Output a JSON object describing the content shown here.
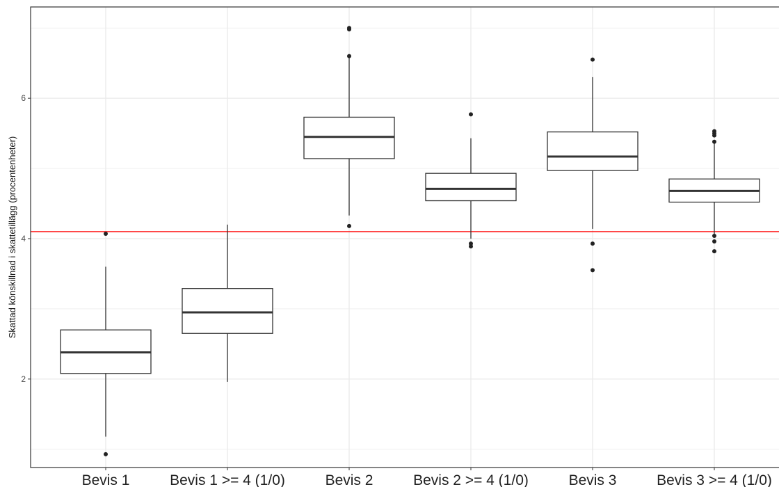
{
  "chart_data": {
    "type": "boxplot",
    "title": "",
    "xlabel": "",
    "ylabel": "Skattad könskillnad i skattetillägg (procentenheter)",
    "ylim": [
      0.74,
      7.3
    ],
    "yticks": [
      2,
      4,
      6
    ],
    "ytick_labels": [
      "2",
      "4",
      "6"
    ],
    "grid": true,
    "categories": [
      "Bevis 1",
      "Bevis 1 >= 4 (1/0)",
      "Bevis 2",
      "Bevis 2 >= 4 (1/0)",
      "Bevis 3",
      "Bevis 3 >= 4 (1/0)"
    ],
    "boxes": [
      {
        "whisker_low": 1.18,
        "q1": 2.08,
        "median": 2.38,
        "q3": 2.7,
        "whisker_high": 3.6,
        "outliers": [
          0.93,
          4.07
        ]
      },
      {
        "whisker_low": 1.96,
        "q1": 2.65,
        "median": 2.95,
        "q3": 3.29,
        "whisker_high": 4.2,
        "outliers": []
      },
      {
        "whisker_low": 4.33,
        "q1": 5.14,
        "median": 5.45,
        "q3": 5.73,
        "whisker_high": 6.58,
        "outliers": [
          4.18,
          6.6,
          6.98,
          7.0
        ]
      },
      {
        "whisker_low": 4.0,
        "q1": 4.54,
        "median": 4.71,
        "q3": 4.93,
        "whisker_high": 5.43,
        "outliers": [
          3.89,
          3.93,
          5.77
        ]
      },
      {
        "whisker_low": 4.14,
        "q1": 4.97,
        "median": 5.17,
        "q3": 5.52,
        "whisker_high": 6.3,
        "outliers": [
          3.55,
          3.93,
          6.55
        ]
      },
      {
        "whisker_low": 4.05,
        "q1": 4.52,
        "median": 4.68,
        "q3": 4.85,
        "whisker_high": 5.36,
        "outliers": [
          3.82,
          3.96,
          4.04,
          5.38,
          5.47,
          5.5,
          5.53
        ]
      }
    ],
    "reference_line": {
      "y": 4.1,
      "color": "#ff0000"
    },
    "colors": {
      "box_fill": "#ffffff",
      "box_stroke": "#333333",
      "grid": "#ebebeb",
      "panel_border": "#333333"
    }
  }
}
